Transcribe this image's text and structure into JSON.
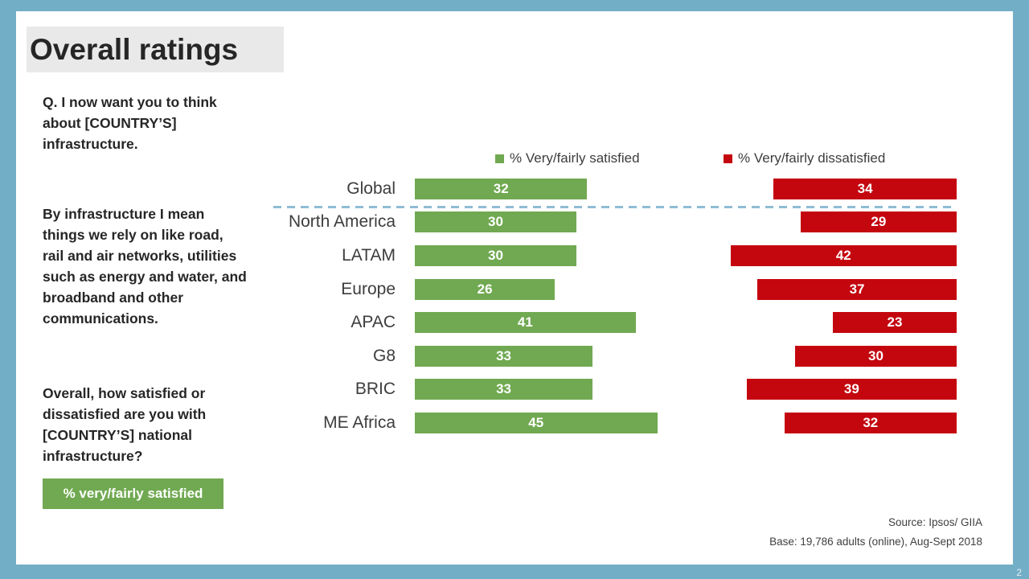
{
  "title": "Overall ratings",
  "page": {
    "number": "2"
  },
  "left_panel": {
    "q1": "Q. I now want you to think about [COUNTRY’S] infrastructure.",
    "q2": "By infrastructure I mean things we rely on like road, rail and air networks, utilities such as energy and water, and broadband and other communications.",
    "q3": "Overall, how satisfied or dissatisfied are you with [COUNTRY’S] national infrastructure?",
    "badge_label": "% very/fairly satisfied"
  },
  "footer": {
    "source": "Source: Ipsos/ GIIA",
    "base": "Base: 19,786 adults (online), Aug-Sept 2018"
  },
  "colors": {
    "frame": "#72aec6",
    "title_background": "#e9e9e9",
    "satisfied_green": "#70a951",
    "dissatisfied_red": "#c4060f",
    "separator_blue": "#8fbcd4",
    "text_dark": "#262626"
  },
  "chart_data": {
    "type": "bar",
    "orientation": "horizontal",
    "title": "",
    "categories": [
      "Global",
      "North America",
      "LATAM",
      "Europe",
      "APAC",
      "G8",
      "BRIC",
      "ME Africa"
    ],
    "series": [
      {
        "name": "% Very/fairly satisfied",
        "color": "#70a951",
        "align": "left",
        "values": [
          32,
          30,
          30,
          26,
          41,
          33,
          33,
          45
        ]
      },
      {
        "name": "% Very/fairly dissatisfied",
        "color": "#c4060f",
        "align": "right",
        "values": [
          34,
          29,
          42,
          37,
          23,
          30,
          39,
          32
        ]
      }
    ],
    "value_labels": "inside",
    "legend_position": "top",
    "separator_after_category": "Global",
    "xlim": [
      0,
      100
    ]
  }
}
